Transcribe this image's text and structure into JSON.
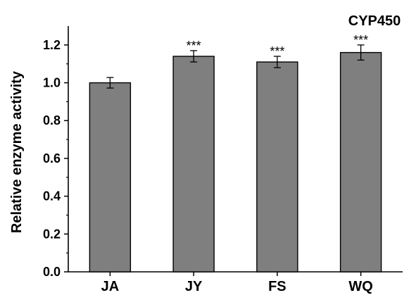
{
  "chart_data": {
    "type": "bar",
    "title": "CYP450",
    "xlabel": "",
    "ylabel": "Relative enzyme activity",
    "categories": [
      "JA",
      "JY",
      "FS",
      "WQ"
    ],
    "values": [
      1.0,
      1.14,
      1.11,
      1.16
    ],
    "errors": [
      0.028,
      0.03,
      0.03,
      0.04
    ],
    "annotations": [
      "",
      "***",
      "***",
      "***"
    ],
    "ylim": [
      0,
      1.3
    ],
    "yticks": [
      "0.0",
      "0.2",
      "0.4",
      "0.6",
      "0.8",
      "1.0",
      "1.2"
    ],
    "grid": false,
    "legend": "none",
    "bar_color": "#7f7f7f"
  }
}
